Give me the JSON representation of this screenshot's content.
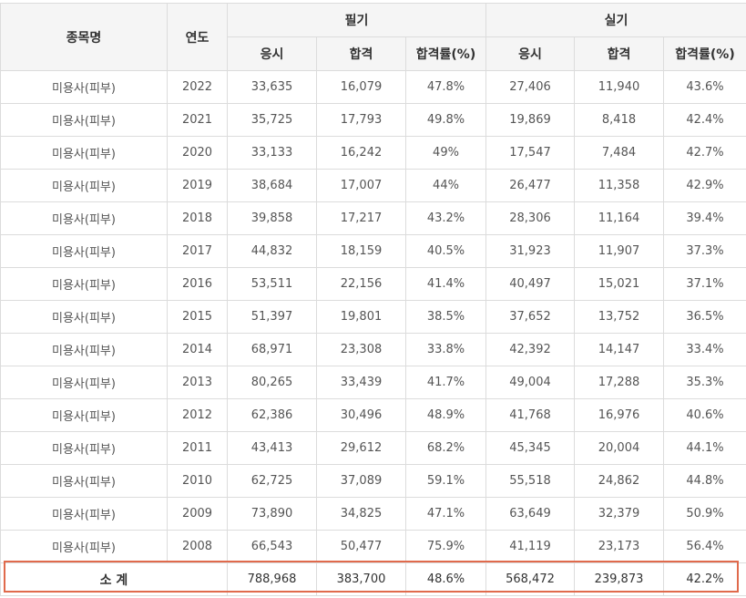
{
  "headers": {
    "item_name": "종목명",
    "year": "연도",
    "written": "필기",
    "practical": "실기",
    "applicants": "응시",
    "passed": "합격",
    "pass_rate": "합격률(%)"
  },
  "rows": [
    {
      "name": "미용사(피부)",
      "year": "2022",
      "w_app": "33,635",
      "w_pass": "16,079",
      "w_rate": "47.8%",
      "p_app": "27,406",
      "p_pass": "11,940",
      "p_rate": "43.6%"
    },
    {
      "name": "미용사(피부)",
      "year": "2021",
      "w_app": "35,725",
      "w_pass": "17,793",
      "w_rate": "49.8%",
      "p_app": "19,869",
      "p_pass": "8,418",
      "p_rate": "42.4%"
    },
    {
      "name": "미용사(피부)",
      "year": "2020",
      "w_app": "33,133",
      "w_pass": "16,242",
      "w_rate": "49%",
      "p_app": "17,547",
      "p_pass": "7,484",
      "p_rate": "42.7%"
    },
    {
      "name": "미용사(피부)",
      "year": "2019",
      "w_app": "38,684",
      "w_pass": "17,007",
      "w_rate": "44%",
      "p_app": "26,477",
      "p_pass": "11,358",
      "p_rate": "42.9%"
    },
    {
      "name": "미용사(피부)",
      "year": "2018",
      "w_app": "39,858",
      "w_pass": "17,217",
      "w_rate": "43.2%",
      "p_app": "28,306",
      "p_pass": "11,164",
      "p_rate": "39.4%"
    },
    {
      "name": "미용사(피부)",
      "year": "2017",
      "w_app": "44,832",
      "w_pass": "18,159",
      "w_rate": "40.5%",
      "p_app": "31,923",
      "p_pass": "11,907",
      "p_rate": "37.3%"
    },
    {
      "name": "미용사(피부)",
      "year": "2016",
      "w_app": "53,511",
      "w_pass": "22,156",
      "w_rate": "41.4%",
      "p_app": "40,497",
      "p_pass": "15,021",
      "p_rate": "37.1%"
    },
    {
      "name": "미용사(피부)",
      "year": "2015",
      "w_app": "51,397",
      "w_pass": "19,801",
      "w_rate": "38.5%",
      "p_app": "37,652",
      "p_pass": "13,752",
      "p_rate": "36.5%"
    },
    {
      "name": "미용사(피부)",
      "year": "2014",
      "w_app": "68,971",
      "w_pass": "23,308",
      "w_rate": "33.8%",
      "p_app": "42,392",
      "p_pass": "14,147",
      "p_rate": "33.4%"
    },
    {
      "name": "미용사(피부)",
      "year": "2013",
      "w_app": "80,265",
      "w_pass": "33,439",
      "w_rate": "41.7%",
      "p_app": "49,004",
      "p_pass": "17,288",
      "p_rate": "35.3%"
    },
    {
      "name": "미용사(피부)",
      "year": "2012",
      "w_app": "62,386",
      "w_pass": "30,496",
      "w_rate": "48.9%",
      "p_app": "41,768",
      "p_pass": "16,976",
      "p_rate": "40.6%"
    },
    {
      "name": "미용사(피부)",
      "year": "2011",
      "w_app": "43,413",
      "w_pass": "29,612",
      "w_rate": "68.2%",
      "p_app": "45,345",
      "p_pass": "20,004",
      "p_rate": "44.1%"
    },
    {
      "name": "미용사(피부)",
      "year": "2010",
      "w_app": "62,725",
      "w_pass": "37,089",
      "w_rate": "59.1%",
      "p_app": "55,518",
      "p_pass": "24,862",
      "p_rate": "44.8%"
    },
    {
      "name": "미용사(피부)",
      "year": "2009",
      "w_app": "73,890",
      "w_pass": "34,825",
      "w_rate": "47.1%",
      "p_app": "63,649",
      "p_pass": "32,379",
      "p_rate": "50.9%"
    },
    {
      "name": "미용사(피부)",
      "year": "2008",
      "w_app": "66,543",
      "w_pass": "50,477",
      "w_rate": "75.9%",
      "p_app": "41,119",
      "p_pass": "23,173",
      "p_rate": "56.4%"
    }
  ],
  "total": {
    "label": "소 계",
    "w_app": "788,968",
    "w_pass": "383,700",
    "w_rate": "48.6%",
    "p_app": "568,472",
    "p_pass": "239,873",
    "p_rate": "42.2%"
  },
  "colors": {
    "highlight_border": "#e06a4c",
    "header_bg": "#f5f5f5",
    "grid": "#dcdcdc"
  }
}
